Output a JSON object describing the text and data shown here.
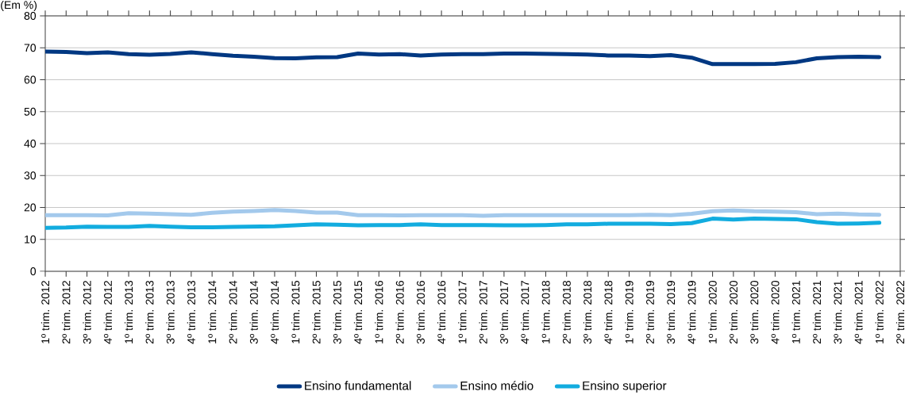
{
  "chart_data": {
    "type": "line",
    "ylabel": "(Em %)",
    "categories": [
      "1º trim. 2012",
      "2º trim. 2012",
      "3º trim. 2012",
      "4º trim. 2012",
      "1º trim. 2013",
      "2º trim. 2013",
      "3º trim. 2013",
      "4º trim. 2013",
      "1º trim. 2014",
      "2º trim. 2014",
      "3º trim. 2014",
      "4º trim. 2014",
      "1º trim. 2015",
      "2º trim. 2015",
      "3º trim. 2015",
      "4º trim. 2015",
      "1º trim. 2016",
      "2º trim. 2016",
      "3º trim. 2016",
      "4º trim. 2016",
      "1º trim. 2017",
      "2º trim. 2017",
      "3º trim. 2017",
      "4º trim. 2017",
      "1º trim. 2018",
      "2º trim. 2018",
      "3º trim. 2018",
      "4º trim. 2018",
      "1º trim. 2019",
      "2º trim. 2019",
      "3º trim. 2019",
      "4º trim. 2019",
      "1º trim. 2020",
      "2º trim. 2020",
      "3º trim. 2020",
      "4º trim. 2020",
      "1º trim. 2021",
      "2º trim. 2021",
      "3º trim. 2021",
      "4º trim. 2021",
      "1º trim. 2022",
      "2º trim. 2022"
    ],
    "series": [
      {
        "name": "Ensino fundamental",
        "color": "#003882",
        "values": [
          68.8,
          68.7,
          68.3,
          68.6,
          68.0,
          67.8,
          68.1,
          68.6,
          68.0,
          67.5,
          67.2,
          66.8,
          66.7,
          67.0,
          67.1,
          68.2,
          67.9,
          68.0,
          67.6,
          67.9,
          68.0,
          68.0,
          68.2,
          68.2,
          68.1,
          68.0,
          67.9,
          67.6,
          67.6,
          67.4,
          67.7,
          66.9,
          64.9,
          64.9,
          64.9,
          65.0,
          65.5,
          66.7,
          67.1,
          67.2,
          67.1,
          null
        ]
      },
      {
        "name": "Ensino médio",
        "color": "#a3c9ec",
        "values": [
          17.6,
          17.6,
          17.6,
          17.5,
          18.2,
          18.1,
          17.9,
          17.7,
          18.3,
          18.7,
          18.9,
          19.2,
          18.9,
          18.4,
          18.4,
          17.6,
          17.6,
          17.5,
          17.6,
          17.6,
          17.6,
          17.4,
          17.6,
          17.6,
          17.6,
          17.6,
          17.6,
          17.6,
          17.6,
          17.7,
          17.6,
          18.0,
          18.8,
          19.1,
          18.8,
          18.7,
          18.5,
          17.9,
          18.1,
          17.8,
          17.7,
          null
        ]
      },
      {
        "name": "Ensino superior",
        "color": "#12acdf",
        "values": [
          13.6,
          13.7,
          14.0,
          13.9,
          13.9,
          14.2,
          14.0,
          13.8,
          13.8,
          13.9,
          14.0,
          14.1,
          14.4,
          14.7,
          14.6,
          14.4,
          14.5,
          14.5,
          14.7,
          14.5,
          14.5,
          14.5,
          14.4,
          14.4,
          14.5,
          14.7,
          14.7,
          14.9,
          14.9,
          14.9,
          14.8,
          15.1,
          16.5,
          16.2,
          16.5,
          16.4,
          16.3,
          15.4,
          14.9,
          15.0,
          15.2,
          null
        ]
      }
    ],
    "ylim": [
      0,
      80
    ],
    "yticks": [
      0,
      10,
      20,
      30,
      40,
      50,
      60,
      70,
      80
    ],
    "grid": "y",
    "legend": "bottom"
  }
}
